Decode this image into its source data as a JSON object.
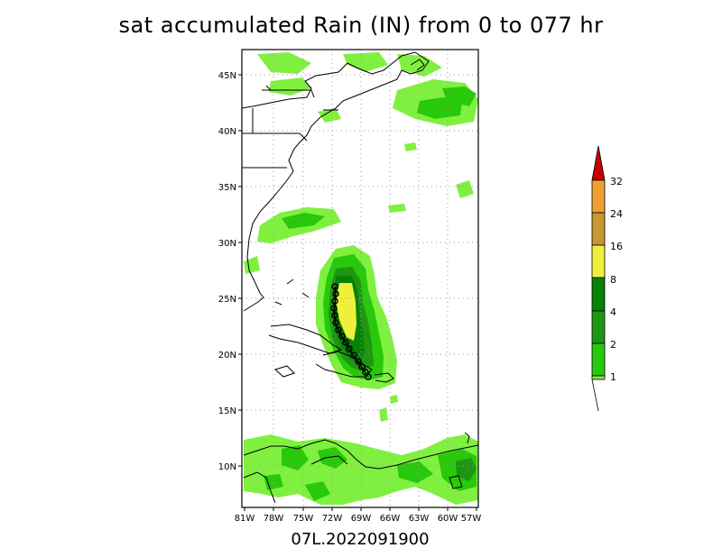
{
  "title": "sat accumulated Rain (IN) from 0 to 077 hr",
  "storm_label": "07L.2022091900",
  "map": {
    "lon_ticks": [
      "81W",
      "78W",
      "75W",
      "72W",
      "69W",
      "66W",
      "63W",
      "60W",
      "57W"
    ],
    "lat_ticks": [
      "45N",
      "40N",
      "35N",
      "30N",
      "25N",
      "20N",
      "15N",
      "10N"
    ]
  },
  "colorbar": {
    "units": "IN",
    "levels": [
      "1",
      "2",
      "4",
      "8",
      "16",
      "24",
      "32"
    ],
    "colors": [
      "#80f040",
      "#28c80a",
      "#1e9614",
      "#078207",
      "#f0f03c",
      "#c89632",
      "#f0a032",
      "#c80000"
    ]
  },
  "colors": {
    "light_green": "#80f040",
    "mid_green": "#28c80a",
    "dark_green": "#1e9614",
    "darker_green": "#078207",
    "yellow": "#f0f03c",
    "gold": "#c89632",
    "orange": "#f0a032",
    "red": "#c80000"
  }
}
